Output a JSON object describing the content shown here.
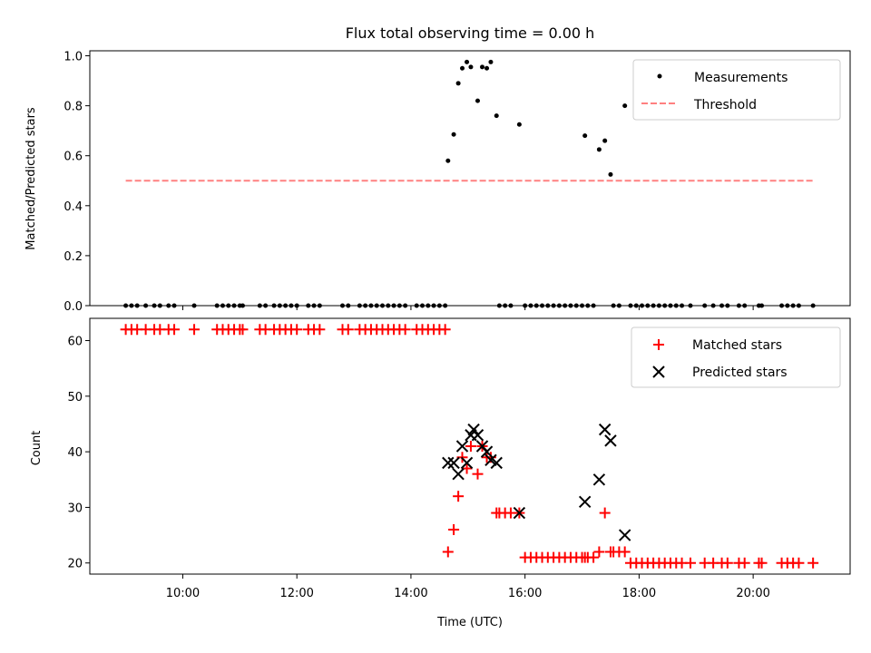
{
  "chart_data": [
    {
      "type": "scatter",
      "title": "Flux total observing time = 0.00 h",
      "xlabel": "",
      "ylabel": "Matched/Predicted stars",
      "xlim": [
        8.37,
        21.7
      ],
      "ylim": [
        0.0,
        1.02
      ],
      "yticks": [
        0.0,
        0.2,
        0.4,
        0.6,
        0.8,
        1.0
      ],
      "ytick_labels": [
        "0.0",
        "0.2",
        "0.4",
        "0.6",
        "0.8",
        "1.0"
      ],
      "legend_position": "top-right",
      "series": [
        {
          "name": "Measurements",
          "marker": "dot",
          "color": "#000000",
          "x": [
            9.0,
            9.1,
            9.2,
            9.35,
            9.5,
            9.6,
            9.75,
            9.85,
            10.2,
            10.6,
            10.7,
            10.8,
            10.9,
            11.0,
            11.05,
            11.35,
            11.45,
            11.6,
            11.7,
            11.8,
            11.9,
            12.0,
            12.2,
            12.3,
            12.4,
            12.8,
            12.9,
            13.1,
            13.2,
            13.3,
            13.4,
            13.5,
            13.6,
            13.7,
            13.8,
            13.9,
            14.1,
            14.2,
            14.3,
            14.4,
            14.5,
            14.6,
            14.65,
            14.75,
            14.83,
            14.9,
            14.98,
            15.05,
            15.17,
            15.25,
            15.33,
            15.4,
            15.5,
            15.55,
            15.65,
            15.75,
            15.9,
            16.0,
            16.1,
            16.2,
            16.3,
            16.4,
            16.5,
            16.6,
            16.7,
            16.8,
            16.9,
            17.0,
            17.05,
            17.1,
            17.2,
            17.3,
            17.4,
            17.5,
            17.55,
            17.65,
            17.75,
            17.85,
            17.95,
            18.05,
            18.15,
            18.25,
            18.35,
            18.45,
            18.55,
            18.65,
            18.75,
            18.9,
            19.15,
            19.3,
            19.45,
            19.55,
            19.75,
            19.85,
            20.1,
            20.15,
            20.5,
            20.6,
            20.7,
            20.8,
            21.05
          ],
          "y": [
            0,
            0,
            0,
            0,
            0,
            0,
            0,
            0,
            0,
            0,
            0,
            0,
            0,
            0,
            0,
            0,
            0,
            0,
            0,
            0,
            0,
            0,
            0,
            0,
            0,
            0,
            0,
            0,
            0,
            0,
            0,
            0,
            0,
            0,
            0,
            0,
            0,
            0,
            0,
            0,
            0,
            0,
            0.58,
            0.685,
            0.89,
            0.95,
            0.975,
            0.955,
            0.82,
            0.955,
            0.95,
            0.975,
            0.76,
            0,
            0,
            0,
            0.725,
            0,
            0,
            0,
            0,
            0,
            0,
            0,
            0,
            0,
            0,
            0,
            0.68,
            0,
            0,
            0.625,
            0.66,
            0.525,
            0,
            0,
            0.8,
            0,
            0,
            0,
            0,
            0,
            0,
            0,
            0,
            0,
            0,
            0,
            0,
            0,
            0,
            0,
            0,
            0,
            0,
            0,
            0,
            0,
            0,
            0,
            0
          ]
        },
        {
          "name": "Threshold",
          "marker": "dashed-line",
          "color": "#ff8080",
          "x": [
            9.0,
            21.05
          ],
          "y": [
            0.5,
            0.5
          ]
        }
      ]
    },
    {
      "type": "scatter",
      "title": "",
      "xlabel": "Time (UTC)",
      "ylabel": "Count",
      "xlim": [
        8.37,
        21.7
      ],
      "ylim": [
        18.0,
        64.0
      ],
      "xticks": [
        10,
        12,
        14,
        16,
        18,
        20
      ],
      "xtick_labels": [
        "10:00",
        "12:00",
        "14:00",
        "16:00",
        "18:00",
        "20:00"
      ],
      "yticks": [
        20,
        30,
        40,
        50,
        60
      ],
      "ytick_labels": [
        "20",
        "30",
        "40",
        "50",
        "60"
      ],
      "legend_position": "top-right",
      "series": [
        {
          "name": "Matched stars",
          "marker": "plus",
          "color": "#ff0000",
          "x": [
            9.0,
            9.1,
            9.2,
            9.35,
            9.5,
            9.6,
            9.75,
            9.85,
            10.2,
            10.6,
            10.7,
            10.8,
            10.9,
            11.0,
            11.05,
            11.35,
            11.45,
            11.6,
            11.7,
            11.8,
            11.9,
            12.0,
            12.2,
            12.3,
            12.4,
            12.8,
            12.9,
            13.1,
            13.2,
            13.3,
            13.4,
            13.5,
            13.6,
            13.7,
            13.8,
            13.9,
            14.1,
            14.2,
            14.3,
            14.4,
            14.5,
            14.6,
            14.65,
            14.75,
            14.83,
            14.9,
            14.98,
            15.05,
            15.17,
            15.25,
            15.33,
            15.4,
            15.5,
            15.55,
            15.65,
            15.75,
            15.9,
            16.0,
            16.1,
            16.2,
            16.3,
            16.4,
            16.5,
            16.6,
            16.7,
            16.8,
            16.9,
            17.0,
            17.05,
            17.1,
            17.2,
            17.3,
            17.4,
            17.5,
            17.55,
            17.65,
            17.75,
            17.85,
            17.95,
            18.05,
            18.15,
            18.25,
            18.35,
            18.45,
            18.55,
            18.65,
            18.75,
            18.9,
            19.15,
            19.3,
            19.45,
            19.55,
            19.75,
            19.85,
            20.1,
            20.15,
            20.5,
            20.6,
            20.7,
            20.8,
            21.05
          ],
          "y": [
            62,
            62,
            62,
            62,
            62,
            62,
            62,
            62,
            62,
            62,
            62,
            62,
            62,
            62,
            62,
            62,
            62,
            62,
            62,
            62,
            62,
            62,
            62,
            62,
            62,
            62,
            62,
            62,
            62,
            62,
            62,
            62,
            62,
            62,
            62,
            62,
            62,
            62,
            62,
            62,
            62,
            62,
            22,
            26,
            32,
            39,
            37,
            41,
            36,
            41,
            39,
            39,
            29,
            29,
            29,
            29,
            29,
            21,
            21,
            21,
            21,
            21,
            21,
            21,
            21,
            21,
            21,
            21,
            21,
            21,
            21,
            22,
            29,
            22,
            22,
            22,
            22,
            20,
            20,
            20,
            20,
            20,
            20,
            20,
            20,
            20,
            20,
            20,
            20,
            20,
            20,
            20,
            20,
            20,
            20,
            20,
            20,
            20,
            20,
            20,
            20
          ]
        },
        {
          "name": "Predicted stars",
          "marker": "x",
          "color": "#000000",
          "x": [
            14.65,
            14.75,
            14.83,
            14.9,
            14.98,
            15.05,
            15.1,
            15.17,
            15.25,
            15.33,
            15.4,
            15.5,
            15.9,
            17.05,
            17.3,
            17.4,
            17.5,
            17.75
          ],
          "y": [
            38,
            38,
            36,
            41,
            38,
            43,
            44,
            43,
            41,
            40,
            38.5,
            38,
            29,
            31,
            35,
            44,
            42,
            25
          ]
        }
      ]
    }
  ]
}
